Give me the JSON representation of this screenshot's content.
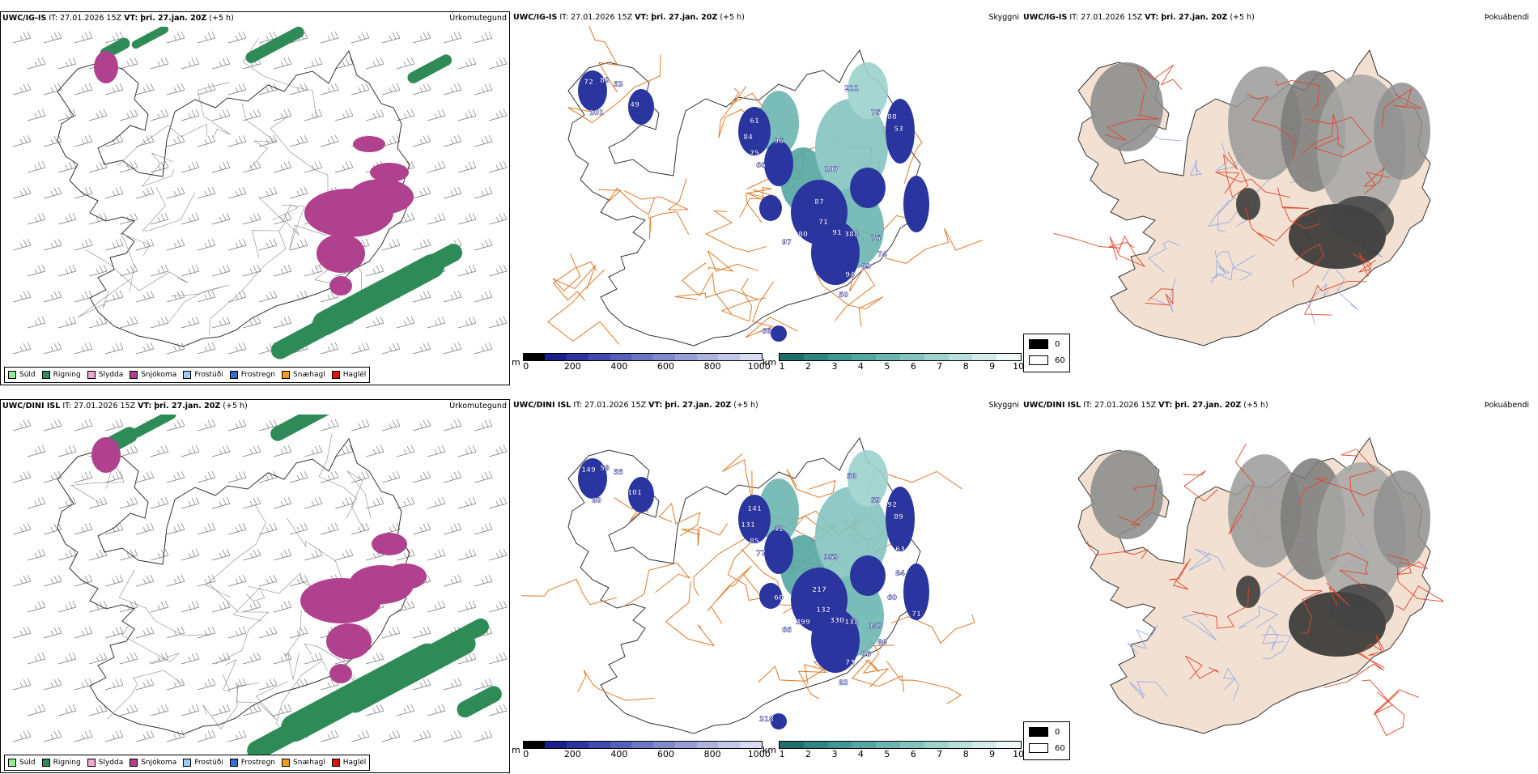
{
  "panels": [
    {
      "header": {
        "model": "UWC/IG-IS",
        "it_label": "IT:",
        "it_value": "27.01.2026 15Z",
        "vt_label": "VT:",
        "vt_value": "þri. 27.jan. 20Z",
        "offset": "(+5 h)"
      },
      "field": "Úrkomutegund",
      "type": "precip"
    },
    {
      "header": {
        "model": "UWC/IG-IS",
        "it_label": "IT:",
        "it_value": "27.01.2026 15Z",
        "vt_label": "VT:",
        "vt_value": "þri. 27.jan. 20Z",
        "offset": "(+5 h)"
      },
      "field": "Skyggni",
      "type": "visibility",
      "labels": [
        "72",
        "83",
        "53",
        "101",
        "49",
        "61",
        "84",
        "75",
        "66",
        "96",
        "211",
        "75",
        "88",
        "53",
        "107",
        "87",
        "71",
        "80",
        "97",
        "91",
        "388",
        "76",
        "74",
        "94",
        "89",
        "50",
        "66"
      ]
    },
    {
      "header": {
        "model": "UWC/IG-IS",
        "it_label": "IT:",
        "it_value": "27.01.2026 15Z",
        "vt_label": "VT:",
        "vt_value": "þri. 27.jan. 20Z",
        "offset": "(+5 h)"
      },
      "field": "Þokuábendi",
      "type": "fog"
    },
    {
      "header": {
        "model": "UWC/DINI ISL",
        "it_label": "IT:",
        "it_value": "27.01.2026 15Z",
        "vt_label": "VT:",
        "vt_value": "þri. 27.jan. 20Z",
        "offset": "(+5 h)"
      },
      "field": "Úrkomutegund",
      "type": "precip"
    },
    {
      "header": {
        "model": "UWC/DINI ISL",
        "it_label": "IT:",
        "it_value": "27.01.2026 15Z",
        "vt_label": "VT:",
        "vt_value": "þri. 27.jan. 20Z",
        "offset": "(+5 h)"
      },
      "field": "Skyggni",
      "type": "visibility",
      "labels": [
        "149",
        "58",
        "55",
        "80",
        "101",
        "141",
        "131",
        "85",
        "77",
        "42",
        "58",
        "53",
        "92",
        "89",
        "353",
        "217",
        "132",
        "399",
        "66",
        "330",
        "132",
        "147",
        "80",
        "73",
        "96",
        "83",
        "318",
        "84",
        "60",
        "71",
        "63",
        "60"
      ]
    },
    {
      "header": {
        "model": "UWC/DINI ISL",
        "it_label": "IT:",
        "it_value": "27.01.2026 15Z",
        "vt_label": "VT:",
        "vt_value": "þri. 27.jan. 20Z",
        "offset": "(+5 h)"
      },
      "field": "Þokuábendi",
      "type": "fog"
    }
  ],
  "precip_legend": [
    {
      "label": "Súld",
      "color": "#90ee90"
    },
    {
      "label": "Rigning",
      "color": "#2e8b57"
    },
    {
      "label": "Slydda",
      "color": "#f4a6d7"
    },
    {
      "label": "Snjókoma",
      "color": "#b0418f"
    },
    {
      "label": "Frostúði",
      "color": "#9ec9f0"
    },
    {
      "label": "Frostregn",
      "color": "#2f6fc4"
    },
    {
      "label": "Snæhagl",
      "color": "#f59a1c"
    },
    {
      "label": "Haglél",
      "color": "#e01010"
    }
  ],
  "ceiling_bar": {
    "unit": "m",
    "ticks": [
      "0",
      "200",
      "400",
      "600",
      "800",
      "1000"
    ],
    "colors": [
      "#000000",
      "#1a1f8c",
      "#2a35a0",
      "#3f4bb0",
      "#5560bb",
      "#6b76c4",
      "#818bcc",
      "#979fd6",
      "#adb3de",
      "#c3c8e8",
      "#dadcf2"
    ]
  },
  "visibility_bar": {
    "unit": "km",
    "ticks": [
      "1",
      "2",
      "3",
      "4",
      "5",
      "6",
      "7",
      "8",
      "9",
      "10"
    ],
    "colors": [
      "#1f6f6b",
      "#2e8582",
      "#3f9893",
      "#55a7a2",
      "#6cb6b1",
      "#84c4bf",
      "#9dd2cd",
      "#b8dfdb",
      "#d4ece9",
      "#eef8f6"
    ]
  },
  "fog_legend": {
    "items": [
      {
        "label": "0",
        "color": "#000000"
      },
      {
        "label": "60",
        "color": "#ffffff"
      }
    ]
  }
}
